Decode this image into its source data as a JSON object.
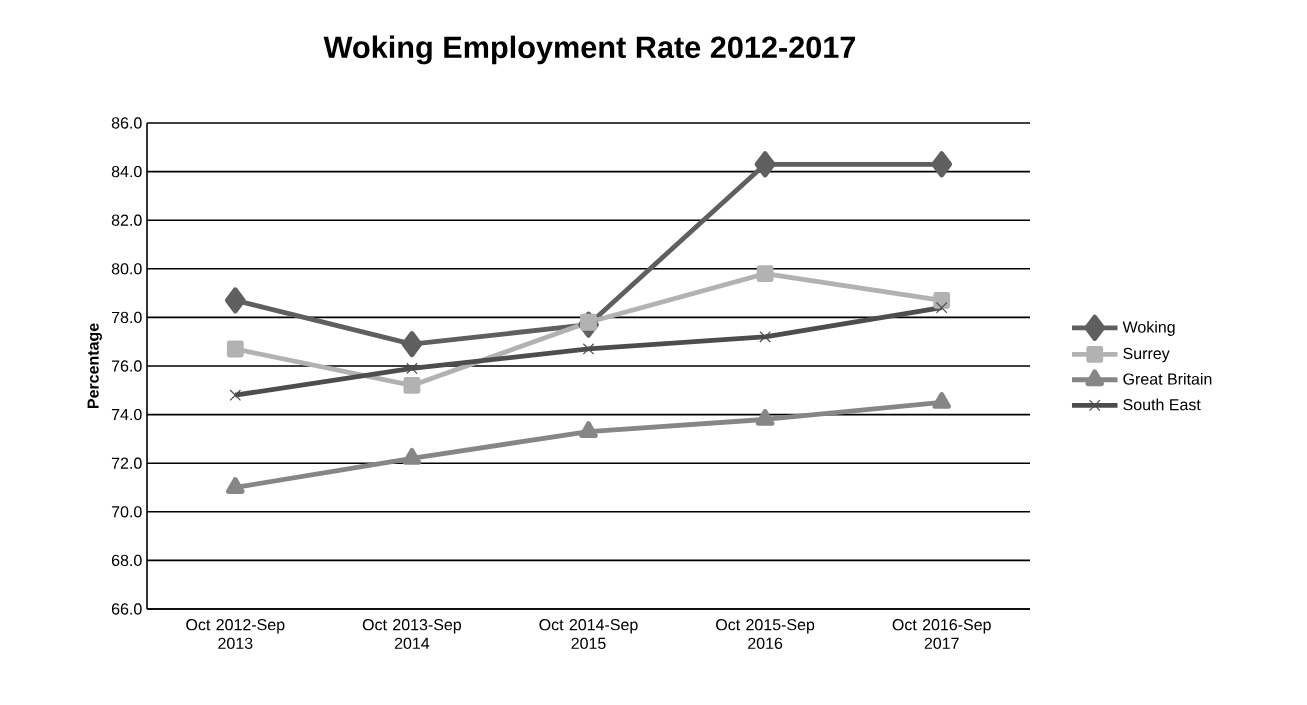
{
  "chart_data": {
    "type": "line",
    "title": "Woking Employment Rate 2012-2017",
    "ylabel": "Percentage",
    "categories": [
      "Oct 2012-Sep 2013",
      "Oct 2013-Sep 2014",
      "Oct 2014-Sep 2015",
      "Oct 2015-Sep 2016",
      "Oct 2016-Sep 2017"
    ],
    "series": [
      {
        "name": "Woking",
        "color": "#5f5f5f",
        "marker": "diamond",
        "values": [
          78.7,
          76.9,
          77.7,
          84.3,
          84.3
        ]
      },
      {
        "name": "Surrey",
        "color": "#b2b2b2",
        "marker": "square",
        "values": [
          76.7,
          75.2,
          77.8,
          79.8,
          78.7
        ]
      },
      {
        "name": "Great Britain",
        "color": "#868686",
        "marker": "triangle",
        "values": [
          71.0,
          72.2,
          73.3,
          73.8,
          74.5
        ]
      },
      {
        "name": "South East",
        "color": "#4d4d4d",
        "marker": "cross",
        "values": [
          74.8,
          75.9,
          76.7,
          77.2,
          78.4
        ]
      }
    ],
    "ylim": [
      66,
      86
    ],
    "yticks": [
      {
        "value": 66,
        "label": "66.0"
      },
      {
        "value": 68,
        "label": "68.0"
      },
      {
        "value": 70,
        "label": "70.0"
      },
      {
        "value": 72,
        "label": "72.0"
      },
      {
        "value": 74,
        "label": "74.0"
      },
      {
        "value": 76,
        "label": "76.0"
      },
      {
        "value": 78,
        "label": "78.0"
      },
      {
        "value": 80,
        "label": "80.0"
      },
      {
        "value": 82,
        "label": "82.0"
      },
      {
        "value": 84,
        "label": "84.0"
      },
      {
        "value": 86,
        "label": "86.0"
      }
    ],
    "grid": "y",
    "legend": "right",
    "line_style": "solid"
  }
}
